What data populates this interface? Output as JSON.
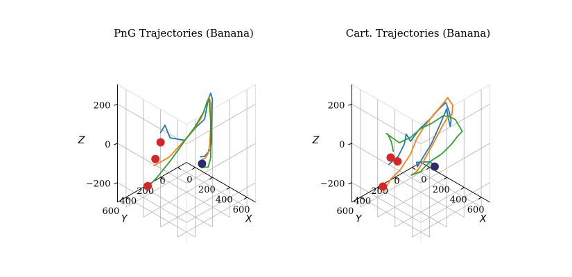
{
  "chart_data": [
    {
      "type": "line3d",
      "title": "PnG Trajectories (Banana)",
      "xlabel": "X",
      "ylabel": "Y",
      "zlabel": "Z",
      "xticks": [
        "0",
        "200",
        "400",
        "600"
      ],
      "yticks": [
        "0",
        "200",
        "400",
        "600"
      ],
      "zticks": [
        "−200",
        "0",
        "200"
      ],
      "xlim": [
        -100,
        700
      ],
      "ylim": [
        -100,
        700
      ],
      "zlim": [
        -300,
        300
      ],
      "series": [
        {
          "color": "#1f77b4",
          "points": [
            [
              80,
              380,
              20
            ],
            [
              110,
              360,
              60
            ],
            [
              130,
              320,
              -10
            ],
            [
              180,
              200,
              -40
            ],
            [
              250,
              130,
              30
            ],
            [
              300,
              90,
              70
            ],
            [
              310,
              60,
              160
            ],
            [
              330,
              50,
              200
            ],
            [
              340,
              40,
              170
            ],
            [
              330,
              40,
              10
            ],
            [
              320,
              30,
              -60
            ],
            [
              300,
              20,
              -100
            ],
            [
              240,
              30,
              -150
            ],
            [
              200,
              40,
              -160
            ]
          ]
        },
        {
          "color": "#ff7f0e",
          "points": [
            [
              100,
              480,
              -120
            ],
            [
              180,
              380,
              -80
            ],
            [
              230,
              280,
              -20
            ],
            [
              260,
              200,
              20
            ],
            [
              290,
              120,
              80
            ],
            [
              300,
              70,
              140
            ],
            [
              320,
              60,
              180
            ],
            [
              330,
              50,
              150
            ],
            [
              320,
              40,
              20
            ],
            [
              300,
              30,
              -70
            ],
            [
              270,
              20,
              -130
            ],
            [
              240,
              20,
              -160
            ],
            [
              200,
              20,
              -180
            ]
          ]
        },
        {
          "color": "#2ca02c",
          "points": [
            [
              120,
              560,
              -200
            ],
            [
              150,
              480,
              -160
            ],
            [
              200,
              380,
              -90
            ],
            [
              250,
              280,
              -10
            ],
            [
              280,
              180,
              50
            ],
            [
              300,
              100,
              110
            ],
            [
              310,
              70,
              160
            ],
            [
              320,
              60,
              170
            ],
            [
              330,
              50,
              60
            ],
            [
              320,
              40,
              -40
            ],
            [
              310,
              30,
              -140
            ],
            [
              270,
              20,
              -200
            ],
            [
              230,
              20,
              -210
            ],
            [
              200,
              25,
              -220
            ]
          ]
        }
      ],
      "start_markers": [
        [
          100,
          400,
          -20
        ],
        [
          80,
          440,
          -100
        ],
        [
          110,
          560,
          -200
        ]
      ],
      "end_marker": [
        200,
        20,
        -200
      ],
      "start_color": "#d62728",
      "end_color": "#2f2a6b"
    },
    {
      "type": "line3d",
      "title": "Cart. Trajectories (Banana)",
      "xlabel": "X",
      "ylabel": "Y",
      "zlabel": "Z",
      "xticks": [
        "0",
        "200",
        "400",
        "600"
      ],
      "yticks": [
        "0",
        "200",
        "400",
        "600"
      ],
      "zticks": [
        "−200",
        "0",
        "200"
      ],
      "xlim": [
        -100,
        700
      ],
      "ylim": [
        -100,
        700
      ],
      "zlim": [
        -300,
        300
      ],
      "series": [
        {
          "color": "#1f77b4",
          "points": [
            [
              90,
              460,
              -120
            ],
            [
              140,
              400,
              -80
            ],
            [
              170,
              360,
              -20
            ],
            [
              180,
              350,
              30
            ],
            [
              200,
              320,
              -10
            ],
            [
              230,
              250,
              40
            ],
            [
              270,
              170,
              80
            ],
            [
              300,
              100,
              120
            ],
            [
              330,
              40,
              150
            ],
            [
              350,
              20,
              100
            ],
            [
              360,
              10,
              60
            ],
            [
              340,
              0,
              20
            ],
            [
              330,
              10,
              60
            ],
            [
              320,
              20,
              110
            ],
            [
              290,
              60,
              40
            ],
            [
              250,
              130,
              -60
            ],
            [
              200,
              200,
              -140
            ],
            [
              160,
              200,
              -180
            ],
            [
              150,
              200,
              -160
            ],
            [
              200,
              100,
              -170
            ],
            [
              220,
              60,
              -190
            ],
            [
              200,
              30,
              -200
            ]
          ]
        },
        {
          "color": "#ff7f0e",
          "points": [
            [
              120,
              560,
              -230
            ],
            [
              150,
              500,
              -170
            ],
            [
              190,
              430,
              -130
            ],
            [
              230,
              350,
              -60
            ],
            [
              250,
              300,
              10
            ],
            [
              270,
              230,
              60
            ],
            [
              300,
              150,
              110
            ],
            [
              330,
              80,
              150
            ],
            [
              350,
              40,
              180
            ],
            [
              380,
              10,
              140
            ],
            [
              350,
              -10,
              80
            ],
            [
              320,
              20,
              60
            ],
            [
              300,
              60,
              20
            ],
            [
              260,
              120,
              -60
            ],
            [
              220,
              190,
              -140
            ],
            [
              180,
              220,
              -190
            ],
            [
              150,
              230,
              -210
            ],
            [
              130,
              240,
              -220
            ]
          ]
        },
        {
          "color": "#2ca02c",
          "points": [
            [
              100,
              420,
              -60
            ],
            [
              80,
              420,
              -20
            ],
            [
              60,
              440,
              20
            ],
            [
              80,
              480,
              40
            ],
            [
              130,
              380,
              -20
            ],
            [
              180,
              300,
              0
            ],
            [
              230,
              230,
              40
            ],
            [
              280,
              150,
              60
            ],
            [
              330,
              70,
              90
            ],
            [
              360,
              20,
              80
            ],
            [
              380,
              -20,
              60
            ],
            [
              400,
              -40,
              30
            ],
            [
              420,
              -60,
              0
            ],
            [
              400,
              -30,
              -20
            ],
            [
              370,
              20,
              -60
            ],
            [
              330,
              90,
              -100
            ],
            [
              280,
              160,
              -130
            ],
            [
              230,
              200,
              -170
            ],
            [
              190,
              190,
              -200
            ],
            [
              160,
              220,
              -210
            ],
            [
              130,
              240,
              -220
            ]
          ]
        }
      ],
      "start_markers": [
        [
          90,
          440,
          -90
        ],
        [
          130,
          400,
          -110
        ],
        [
          120,
          560,
          -200
        ]
      ],
      "end_marker": [
        200,
        40,
        -210
      ],
      "start_color": "#d62728",
      "end_color": "#2f2a6b"
    }
  ]
}
